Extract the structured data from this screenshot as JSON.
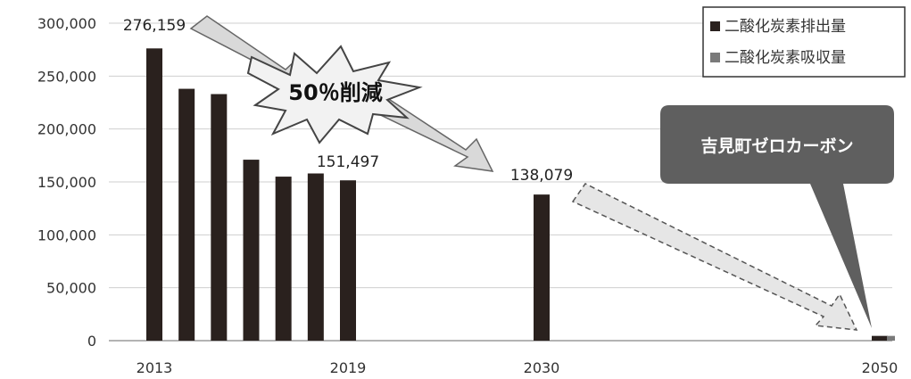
{
  "chart_data": {
    "type": "bar",
    "title": "",
    "xlabel": "",
    "ylabel": "",
    "ylim": [
      0,
      300000
    ],
    "yticks": [
      0,
      50000,
      100000,
      150000,
      200000,
      250000,
      300000
    ],
    "ytick_labels": [
      "0",
      "50,000",
      "100,000",
      "150,000",
      "200,000",
      "250,000",
      "300,000"
    ],
    "x_range": [
      2013,
      2050
    ],
    "xtick_years": [
      2013,
      2019,
      2030,
      2050
    ],
    "xtick_labels": [
      "2013",
      "2019",
      "2030",
      "2050"
    ],
    "grid": true,
    "legend_position": "top-right",
    "legend": [
      {
        "label": "二酸化炭素排出量",
        "color": "#2a211e"
      },
      {
        "label": "二酸化炭素吸収量",
        "color": "#7a7a7a"
      }
    ],
    "series": [
      {
        "name": "二酸化炭素排出量",
        "color": "#2a211e",
        "points": [
          {
            "x": 2013,
            "y": 276159
          },
          {
            "x": 2014,
            "y": 238000
          },
          {
            "x": 2015,
            "y": 233000
          },
          {
            "x": 2016,
            "y": 171000
          },
          {
            "x": 2017,
            "y": 155000
          },
          {
            "x": 2018,
            "y": 158000
          },
          {
            "x": 2019,
            "y": 151497
          },
          {
            "x": 2030,
            "y": 138079
          },
          {
            "x": 2050,
            "y": 4500
          }
        ]
      },
      {
        "name": "二酸化炭素吸収量",
        "color": "#7a7a7a",
        "points": [
          {
            "x": 2050,
            "y": 4500
          }
        ]
      }
    ],
    "data_labels": [
      {
        "x": 2013,
        "text": "276,159"
      },
      {
        "x": 2019,
        "text": "151,497"
      },
      {
        "x": 2030,
        "text": "138,079"
      }
    ],
    "annotations": {
      "burst": "50％削減",
      "callout": "吉見町ゼロカーボン"
    }
  }
}
